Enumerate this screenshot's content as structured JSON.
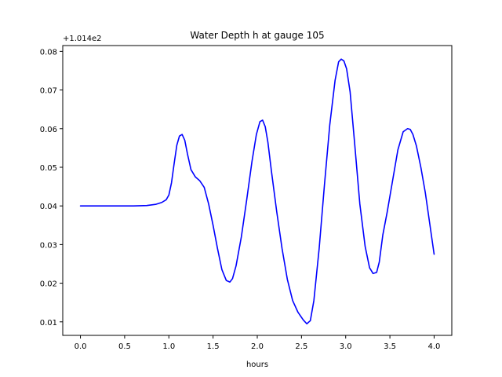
{
  "chart_data": {
    "type": "line",
    "title": "Water Depth h at gauge 105",
    "xlabel": "hours",
    "ylabel": "",
    "offset_label": "+1.014e2",
    "xlim": [
      -0.2,
      4.2
    ],
    "ylim": [
      0.0065,
      0.0815
    ],
    "xticks": [
      0.0,
      0.5,
      1.0,
      1.5,
      2.0,
      2.5,
      3.0,
      3.5,
      4.0
    ],
    "xtick_labels": [
      "0.0",
      "0.5",
      "1.0",
      "1.5",
      "2.0",
      "2.5",
      "3.0",
      "3.5",
      "4.0"
    ],
    "yticks": [
      0.01,
      0.02,
      0.03,
      0.04,
      0.05,
      0.06,
      0.07,
      0.08
    ],
    "ytick_labels": [
      "0.01",
      "0.02",
      "0.03",
      "0.04",
      "0.05",
      "0.06",
      "0.07",
      "0.08"
    ],
    "grid": false,
    "series": [
      {
        "color": "#0000ff",
        "x": [
          0.0,
          0.2,
          0.4,
          0.6,
          0.75,
          0.85,
          0.92,
          0.97,
          1.0,
          1.03,
          1.06,
          1.09,
          1.12,
          1.15,
          1.18,
          1.21,
          1.25,
          1.3,
          1.35,
          1.4,
          1.45,
          1.5,
          1.55,
          1.6,
          1.65,
          1.69,
          1.72,
          1.76,
          1.82,
          1.88,
          1.94,
          1.99,
          2.03,
          2.06,
          2.09,
          2.12,
          2.16,
          2.22,
          2.28,
          2.34,
          2.4,
          2.46,
          2.52,
          2.56,
          2.6,
          2.64,
          2.7,
          2.76,
          2.82,
          2.88,
          2.92,
          2.95,
          2.98,
          3.01,
          3.05,
          3.1,
          3.16,
          3.22,
          3.27,
          3.31,
          3.35,
          3.38,
          3.42,
          3.47,
          3.53,
          3.59,
          3.65,
          3.7,
          3.73,
          3.76,
          3.8,
          3.85,
          3.9,
          3.95,
          4.0
        ],
        "y": [
          0.04,
          0.04,
          0.04,
          0.04,
          0.0401,
          0.0404,
          0.0409,
          0.0416,
          0.0428,
          0.046,
          0.051,
          0.0557,
          0.0581,
          0.0585,
          0.057,
          0.0535,
          0.0494,
          0.0475,
          0.0465,
          0.0448,
          0.0405,
          0.035,
          0.029,
          0.0235,
          0.0207,
          0.0203,
          0.0212,
          0.0245,
          0.032,
          0.0415,
          0.0515,
          0.0585,
          0.0618,
          0.0622,
          0.0605,
          0.0565,
          0.049,
          0.0385,
          0.029,
          0.021,
          0.0155,
          0.0125,
          0.0105,
          0.0095,
          0.0103,
          0.0155,
          0.029,
          0.0455,
          0.061,
          0.0725,
          0.0773,
          0.078,
          0.0775,
          0.0755,
          0.0695,
          0.0565,
          0.0405,
          0.0295,
          0.024,
          0.0225,
          0.0228,
          0.0255,
          0.0325,
          0.0385,
          0.0465,
          0.0545,
          0.0592,
          0.06,
          0.0598,
          0.0585,
          0.0555,
          0.05,
          0.0435,
          0.0355,
          0.0275
        ]
      }
    ]
  }
}
